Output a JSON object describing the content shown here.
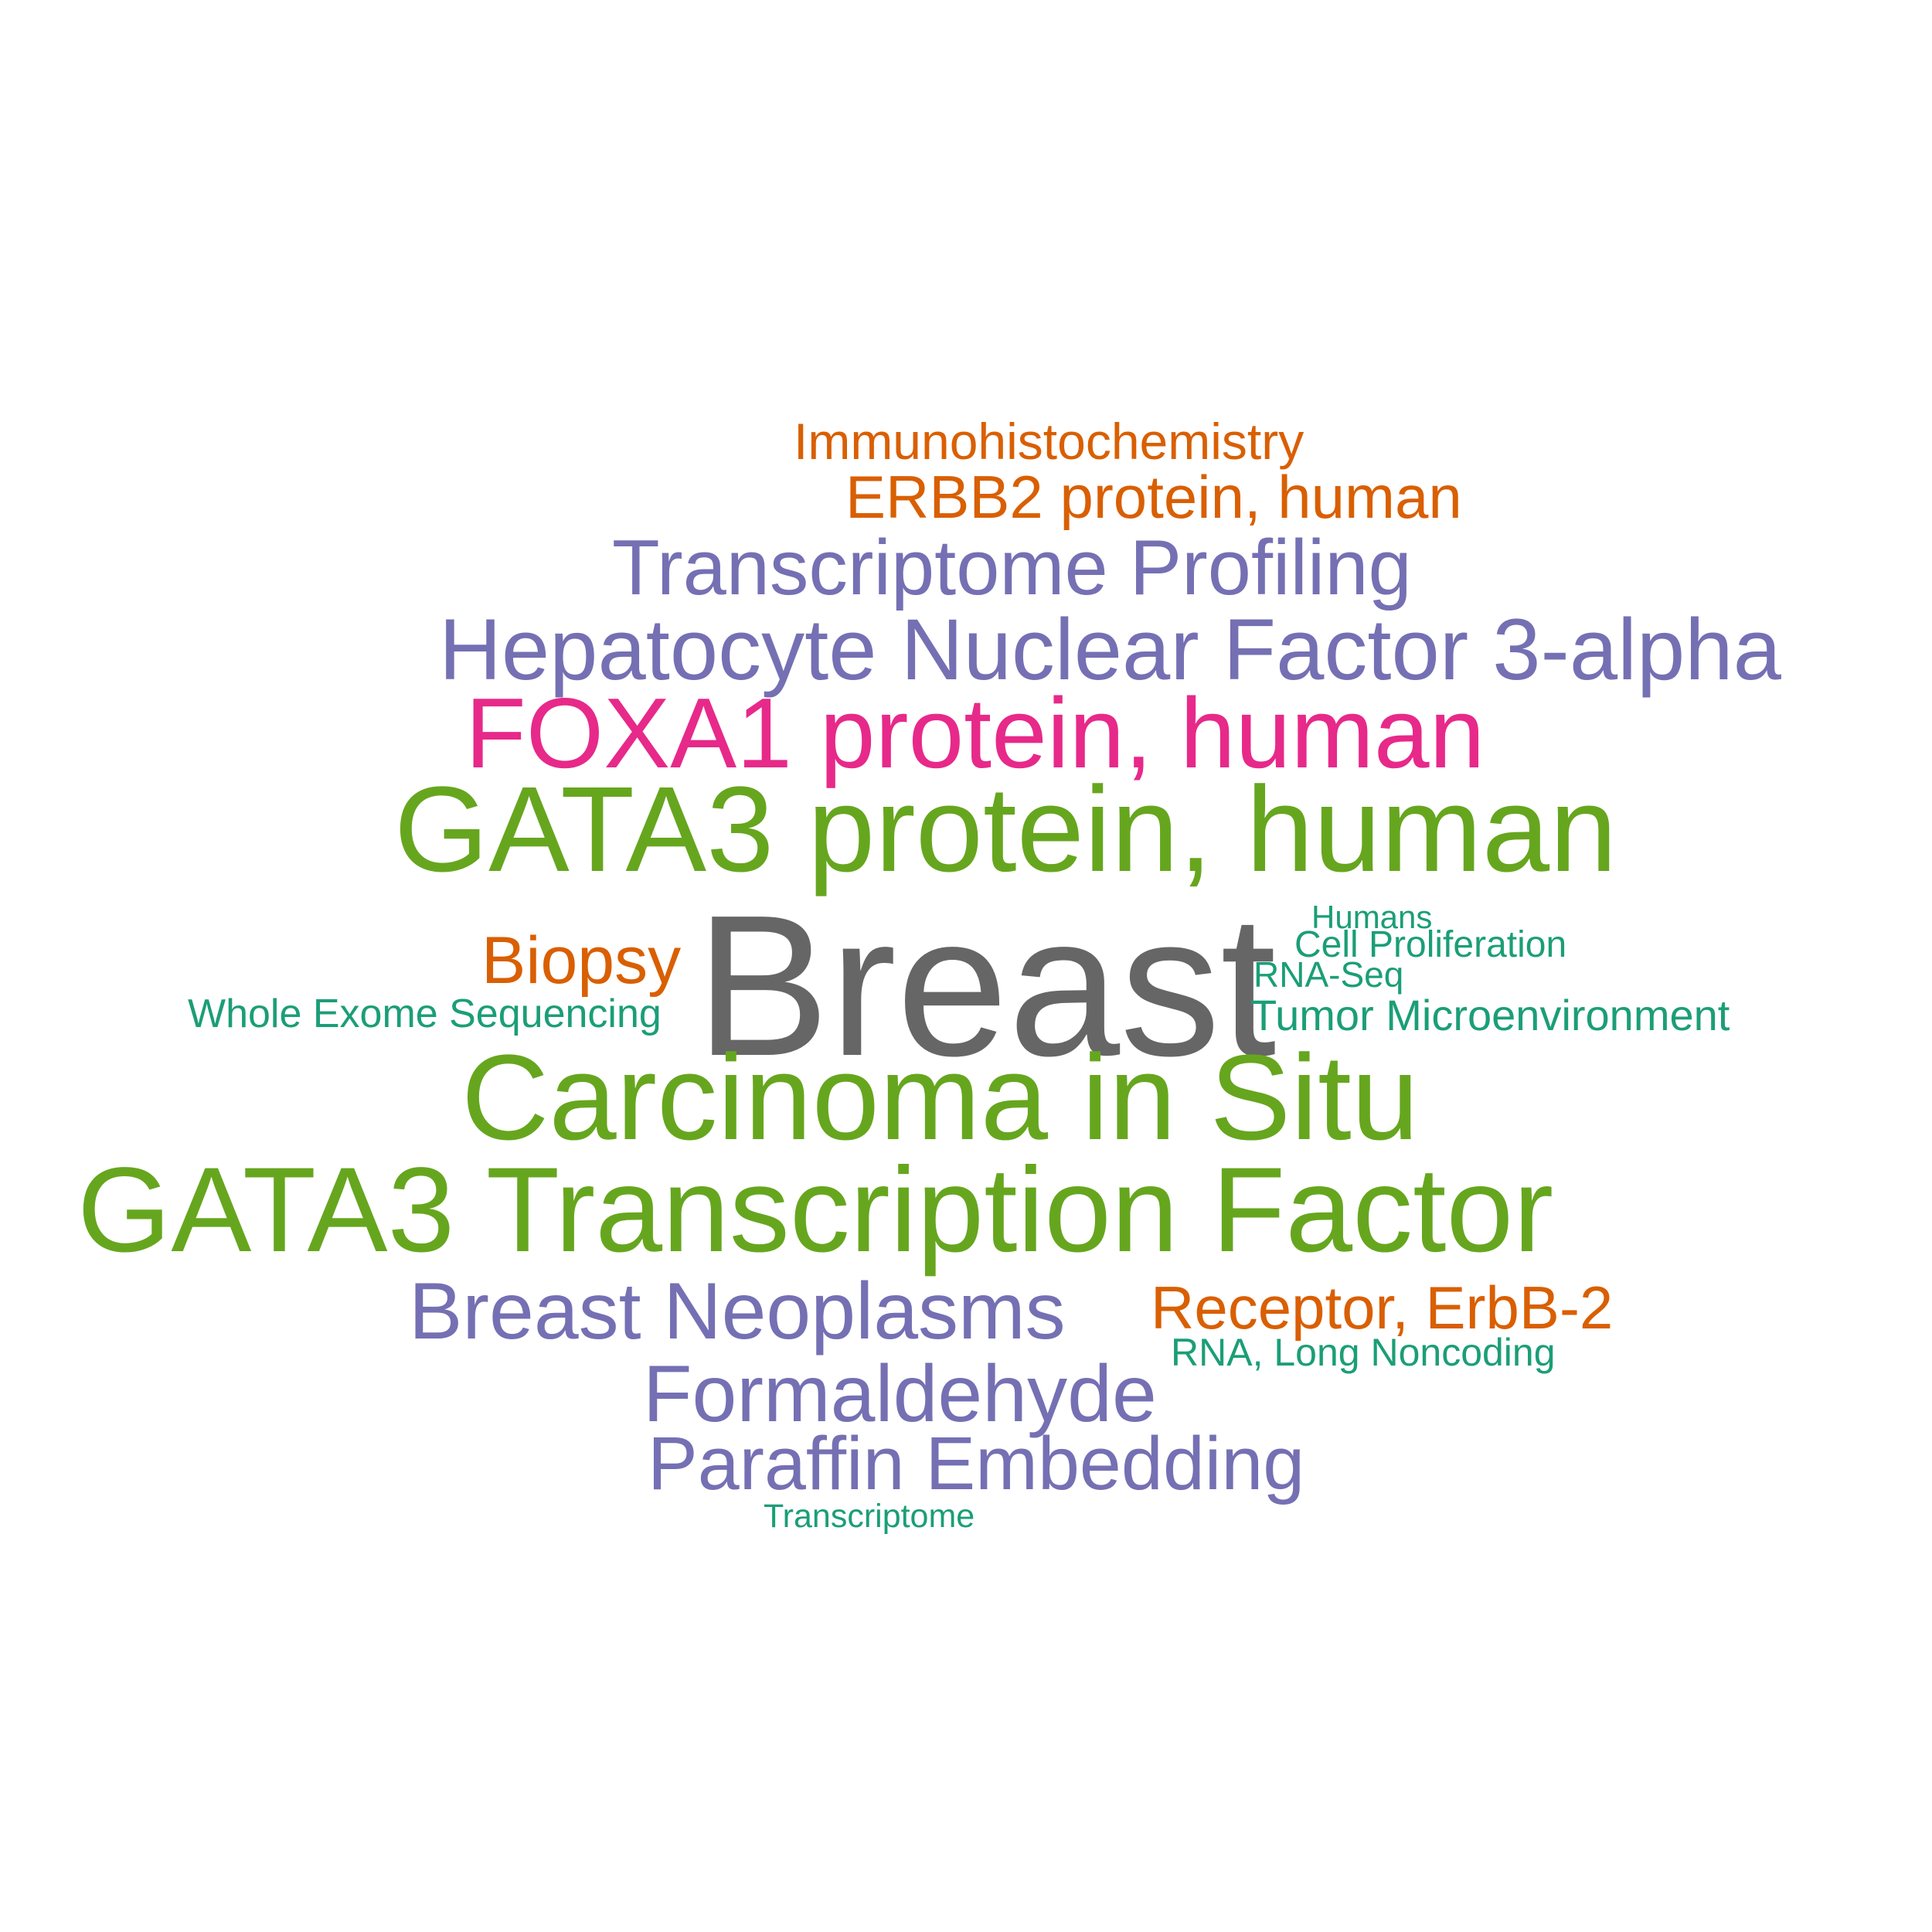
{
  "colors": {
    "gray": "#666666",
    "green": "#66a61e",
    "pink": "#e7298a",
    "purple": "#7570b3",
    "orange": "#d95f02",
    "teal": "#1b9e77"
  },
  "words": {
    "immunohistochemistry": "Immunohistochemistry",
    "erbb2_protein": "ERBB2 protein, human",
    "transcriptome_profiling": "Transcriptome Profiling",
    "hnf3a": "Hepatocyte Nuclear Factor 3-alpha",
    "foxa1_protein": "FOXA1 protein, human",
    "gata3_protein": "GATA3 protein, human",
    "humans": "Humans",
    "cell_proliferation": "Cell Proliferation",
    "biopsy": "Biopsy",
    "breast": "Breast",
    "rna_seq": "RNA-Seq",
    "whole_exome_sequencing": "Whole Exome Sequencing",
    "tumor_microenvironment": "Tumor Microenvironment",
    "carcinoma_in_situ": "Carcinoma in Situ",
    "gata3_tf": "GATA3 Transcription Factor",
    "breast_neoplasms": "Breast Neoplasms",
    "receptor_erbb2": "Receptor, ErbB-2",
    "lncrna": "RNA, Long Noncoding",
    "formaldehyde": "Formaldehyde",
    "paraffin_embedding": "Paraffin Embedding",
    "transcriptome": "Transcriptome"
  }
}
